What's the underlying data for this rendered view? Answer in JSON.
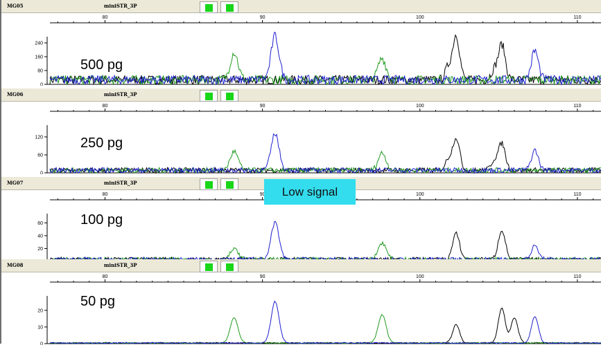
{
  "x_ticks": [
    80,
    90,
    100,
    110
  ],
  "annotation": "Low signal",
  "colors": {
    "blue": "#1f1fd0",
    "green": "#1f9a1f",
    "black": "#000000",
    "header_bg": "#ece9d8",
    "dye_square": "#19d619",
    "annotation_bg": "#33ddee"
  },
  "panels": [
    {
      "sample": "MG05",
      "kit": "miniSTR_3P",
      "amount": "500 pg",
      "y_ticks": [
        0,
        80,
        160,
        240
      ],
      "y_max": 260,
      "peaks": [
        {
          "x": 88.2,
          "h": 160,
          "w": 0.25,
          "c": "green"
        },
        {
          "x": 90.8,
          "h": 255,
          "w": 0.25,
          "c": "blue"
        },
        {
          "x": 97.6,
          "h": 125,
          "w": 0.25,
          "c": "green"
        },
        {
          "x": 102.3,
          "h": 260,
          "w": 0.22,
          "c": "black"
        },
        {
          "x": 101.8,
          "h": 70,
          "w": 0.2,
          "c": "black"
        },
        {
          "x": 105.2,
          "h": 205,
          "w": 0.22,
          "c": "black"
        },
        {
          "x": 104.7,
          "h": 55,
          "w": 0.2,
          "c": "black"
        },
        {
          "x": 107.3,
          "h": 170,
          "w": 0.22,
          "c": "blue"
        }
      ],
      "noise": 3
    },
    {
      "sample": "MG06",
      "kit": "miniSTR_3P",
      "amount": "250 pg",
      "y_ticks": [
        0,
        60,
        120
      ],
      "y_max": 150,
      "peaks": [
        {
          "x": 88.2,
          "h": 63,
          "w": 0.25,
          "c": "green"
        },
        {
          "x": 90.8,
          "h": 123,
          "w": 0.25,
          "c": "blue"
        },
        {
          "x": 97.6,
          "h": 58,
          "w": 0.25,
          "c": "green"
        },
        {
          "x": 102.3,
          "h": 108,
          "w": 0.22,
          "c": "black"
        },
        {
          "x": 101.8,
          "h": 35,
          "w": 0.2,
          "c": "black"
        },
        {
          "x": 105.2,
          "h": 90,
          "w": 0.22,
          "c": "black"
        },
        {
          "x": 104.7,
          "h": 30,
          "w": 0.2,
          "c": "black"
        },
        {
          "x": 107.3,
          "h": 67,
          "w": 0.22,
          "c": "blue"
        }
      ],
      "noise": 3
    },
    {
      "sample": "MG07",
      "kit": "miniSTR_3P",
      "amount": "100 pg",
      "y_ticks": [
        0,
        20,
        40,
        60
      ],
      "y_max": 70,
      "peaks": [
        {
          "x": 88.2,
          "h": 16,
          "w": 0.25,
          "c": "green"
        },
        {
          "x": 90.8,
          "h": 58,
          "w": 0.25,
          "c": "blue"
        },
        {
          "x": 97.6,
          "h": 26,
          "w": 0.25,
          "c": "green"
        },
        {
          "x": 102.3,
          "h": 40,
          "w": 0.22,
          "c": "black"
        },
        {
          "x": 105.2,
          "h": 46,
          "w": 0.22,
          "c": "black"
        },
        {
          "x": 107.3,
          "h": 21,
          "w": 0.22,
          "c": "blue"
        }
      ],
      "noise": 5
    },
    {
      "sample": "MG08",
      "kit": "miniSTR_3P",
      "amount": "50 pg",
      "y_ticks": [
        0,
        10,
        20
      ],
      "y_max": 27,
      "peaks": [
        {
          "x": 88.2,
          "h": 15,
          "w": 0.25,
          "c": "green"
        },
        {
          "x": 90.8,
          "h": 25,
          "w": 0.25,
          "c": "blue"
        },
        {
          "x": 97.6,
          "h": 17,
          "w": 0.25,
          "c": "green"
        },
        {
          "x": 102.3,
          "h": 11,
          "w": 0.22,
          "c": "black"
        },
        {
          "x": 105.2,
          "h": 21,
          "w": 0.22,
          "c": "black"
        },
        {
          "x": 106.0,
          "h": 15,
          "w": 0.22,
          "c": "black"
        },
        {
          "x": 107.3,
          "h": 16,
          "w": 0.22,
          "c": "blue"
        }
      ],
      "noise": 4
    }
  ]
}
